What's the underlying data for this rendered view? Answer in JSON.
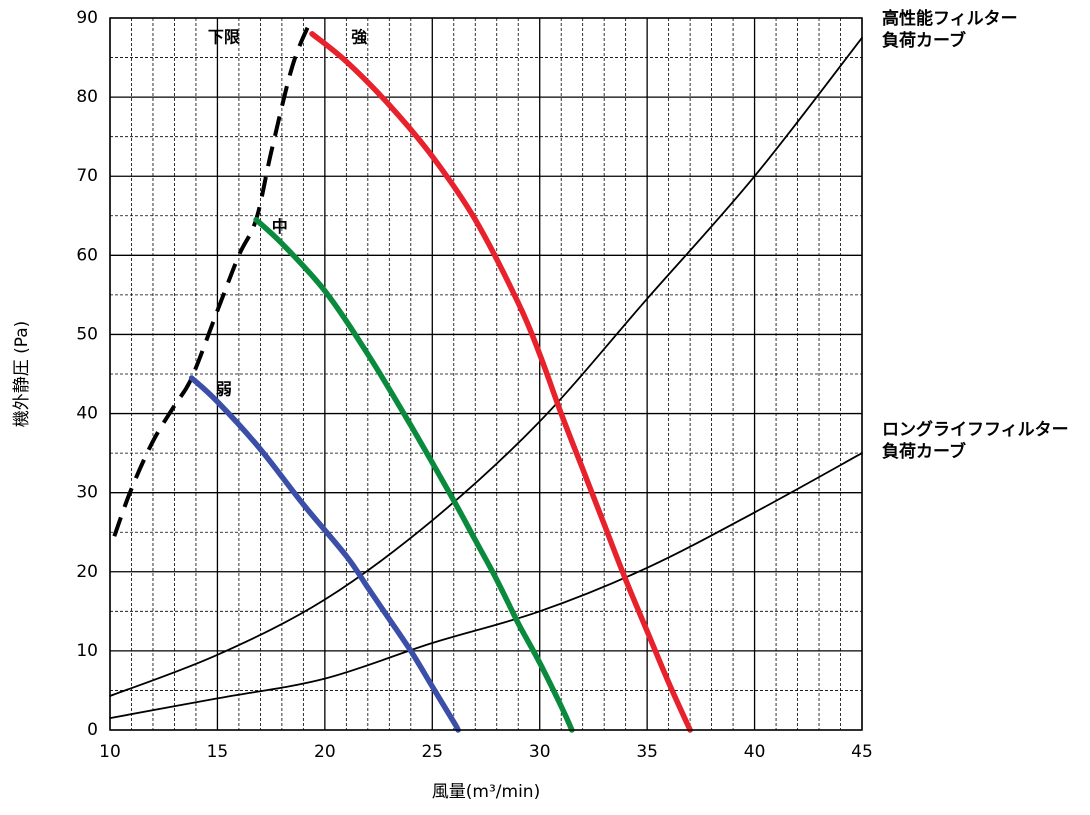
{
  "chart_data": {
    "type": "line",
    "xlabel": "風量(m³/min)",
    "ylabel": "機外静圧 (Pa)",
    "xlim": [
      10,
      45
    ],
    "ylim": [
      0,
      90
    ],
    "x_ticks": [
      10,
      15,
      20,
      25,
      30,
      35,
      40,
      45
    ],
    "y_ticks": [
      0,
      10,
      20,
      30,
      40,
      50,
      60,
      70,
      80,
      90
    ],
    "x_minor_step": 1,
    "y_minor_step": 5,
    "grid": true,
    "series": [
      {
        "name": "強",
        "color": "#e8222d",
        "style": "thick",
        "points": [
          [
            19.4,
            88
          ],
          [
            21,
            84.5
          ],
          [
            23,
            79
          ],
          [
            25,
            72.5
          ],
          [
            27,
            64.5
          ],
          [
            29,
            54
          ],
          [
            30,
            47.5
          ],
          [
            31,
            40
          ],
          [
            32,
            33
          ],
          [
            33,
            26
          ],
          [
            34,
            19
          ],
          [
            35,
            12.5
          ],
          [
            36,
            6
          ],
          [
            37,
            0
          ]
        ]
      },
      {
        "name": "中",
        "color": "#0a8a3c",
        "style": "thick",
        "points": [
          [
            16.8,
            64.5
          ],
          [
            18,
            61.5
          ],
          [
            20,
            55.5
          ],
          [
            22,
            47.5
          ],
          [
            24,
            38.5
          ],
          [
            26,
            29
          ],
          [
            27,
            24
          ],
          [
            28,
            19
          ],
          [
            29,
            13.5
          ],
          [
            30,
            8.5
          ],
          [
            31,
            3
          ],
          [
            31.5,
            0
          ]
        ]
      },
      {
        "name": "弱",
        "color": "#3b4fa8",
        "style": "thick",
        "points": [
          [
            13.8,
            44.5
          ],
          [
            15,
            41.5
          ],
          [
            17,
            35.5
          ],
          [
            19,
            28.5
          ],
          [
            21,
            22
          ],
          [
            22,
            18
          ],
          [
            23,
            14
          ],
          [
            24,
            10
          ],
          [
            25,
            5.5
          ],
          [
            26,
            1
          ],
          [
            26.2,
            0
          ]
        ]
      },
      {
        "name": "下限",
        "color": "#000000",
        "style": "dashed",
        "points": [
          [
            10.2,
            24.5
          ],
          [
            11,
            30.5
          ],
          [
            12,
            36.5
          ],
          [
            13,
            41
          ],
          [
            13.8,
            44.5
          ],
          [
            15,
            53
          ],
          [
            16,
            60
          ],
          [
            16.8,
            64.5
          ],
          [
            17.5,
            73
          ],
          [
            18.5,
            84
          ],
          [
            19.4,
            90
          ]
        ]
      },
      {
        "name": "高性能フィルター負荷カーブ",
        "color": "#000000",
        "style": "thin",
        "points": [
          [
            10,
            4.3
          ],
          [
            15,
            9.5
          ],
          [
            20,
            16.5
          ],
          [
            25,
            26.5
          ],
          [
            30,
            39
          ],
          [
            35,
            54.5
          ],
          [
            40,
            70
          ],
          [
            45,
            87.5
          ]
        ]
      },
      {
        "name": "ロングライフフィルター負荷カーブ",
        "color": "#000000",
        "style": "thin",
        "points": [
          [
            10,
            1.5
          ],
          [
            15,
            4
          ],
          [
            20,
            6.5
          ],
          [
            25,
            11
          ],
          [
            30,
            15
          ],
          [
            35,
            20.5
          ],
          [
            40,
            27.5
          ],
          [
            45,
            35
          ]
        ]
      }
    ],
    "curve_labels": [
      {
        "text": "強",
        "x": 21.6,
        "y": 87.5
      },
      {
        "text": "中",
        "x": 17.9,
        "y": 63.5
      },
      {
        "text": "弱",
        "x": 15.3,
        "y": 43
      },
      {
        "text": "下限",
        "x": 15.3,
        "y": 87.5
      }
    ],
    "series_labels": [
      {
        "lines": [
          "高性能フィルター",
          "負荷カーブ"
        ],
        "anchor_y": 88
      },
      {
        "lines": [
          "ロングライフフィルター",
          "負荷カーブ"
        ],
        "anchor_y": 36
      }
    ]
  }
}
